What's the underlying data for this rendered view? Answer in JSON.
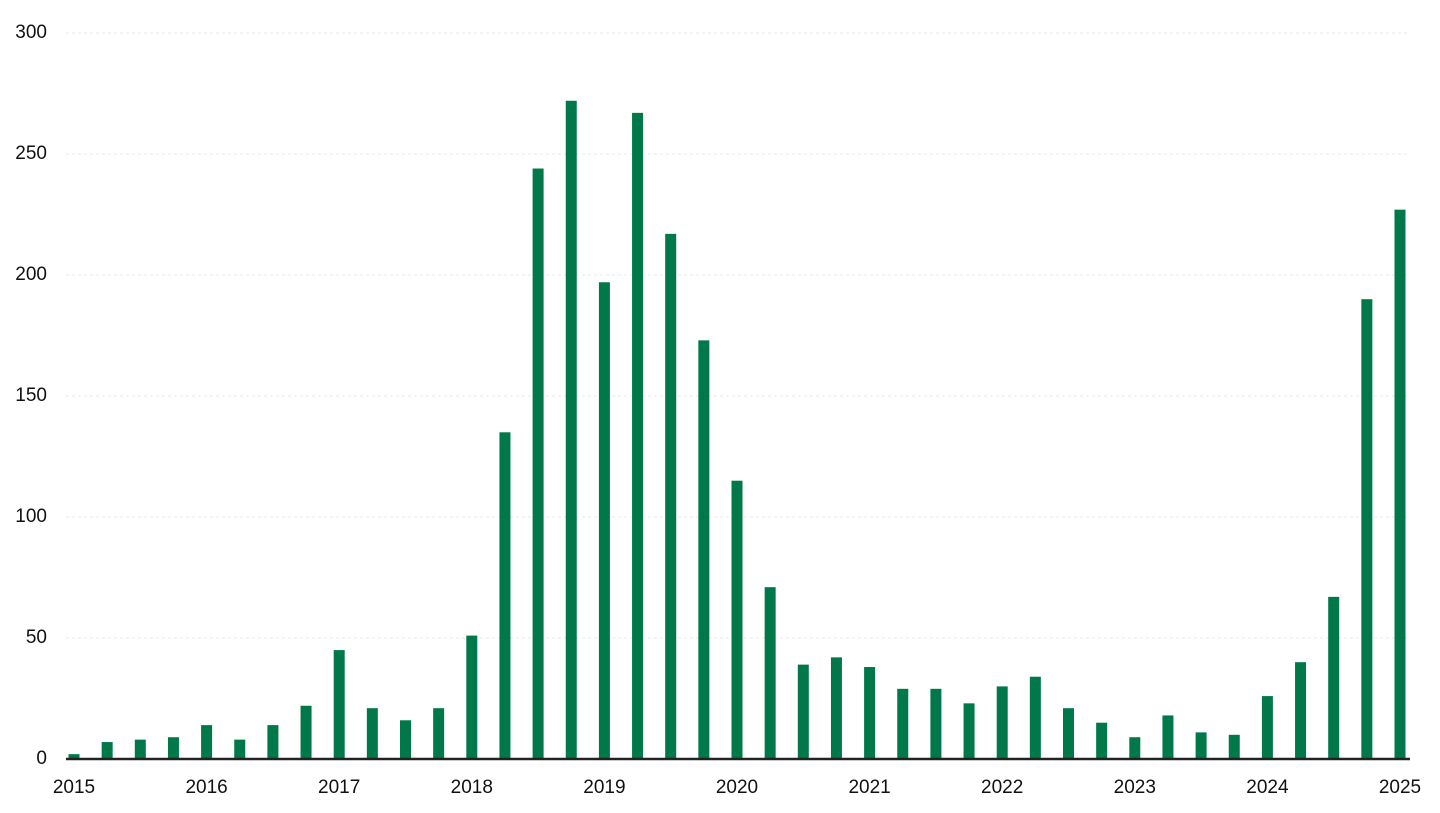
{
  "chart_data": {
    "type": "bar",
    "color": "#00784a",
    "grid": true,
    "ylim": [
      0,
      300
    ],
    "yticks": [
      0,
      50,
      100,
      150,
      200,
      250,
      300
    ],
    "categories": [
      "2015",
      null,
      null,
      null,
      "2016",
      null,
      null,
      null,
      "2017",
      null,
      null,
      null,
      "2018",
      null,
      null,
      null,
      "2019",
      null,
      null,
      null,
      "2020",
      null,
      null,
      null,
      "2021",
      null,
      null,
      null,
      "2022",
      null,
      null,
      null,
      "2023",
      null,
      null,
      null,
      "2024",
      null,
      null,
      null,
      "2025"
    ],
    "values": [
      2,
      7,
      8,
      9,
      14,
      8,
      14,
      22,
      45,
      21,
      16,
      21,
      51,
      135,
      244,
      272,
      197,
      267,
      217,
      173,
      115,
      71,
      39,
      42,
      38,
      29,
      29,
      23,
      30,
      34,
      21,
      15,
      9,
      18,
      11,
      10,
      26,
      40,
      67,
      190,
      227
    ]
  }
}
